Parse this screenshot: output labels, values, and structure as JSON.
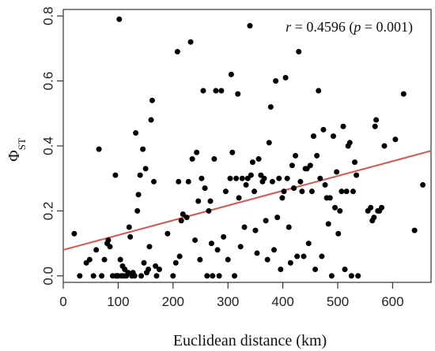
{
  "chart_data": {
    "type": "scatter",
    "title": "",
    "xlabel": "Euclidean distance (km)",
    "ylabel": "ΦST",
    "ylabel_main": "Φ",
    "ylabel_sub": "ST",
    "annotation": {
      "r_symbol": "r",
      "r_part": " = 0.4596 (",
      "p_symbol": "p",
      "p_part": " = 0.001)"
    },
    "xlim": [
      0,
      670
    ],
    "ylim": [
      -0.02,
      0.82
    ],
    "x_ticks": [
      0,
      100,
      200,
      300,
      400,
      500,
      600
    ],
    "x_tick_labels": [
      "0",
      "100",
      "200",
      "300",
      "400",
      "500",
      "600"
    ],
    "y_ticks": [
      0.0,
      0.2,
      0.4,
      0.6,
      0.8
    ],
    "y_tick_labels": [
      "0.0",
      "0.2",
      "0.4",
      "0.6",
      "0.8"
    ],
    "grid": false,
    "regression_line": {
      "x": [
        0,
        670
      ],
      "y": [
        0.08,
        0.385
      ],
      "color": "#d9534f"
    },
    "point_color": "#000000",
    "points": [
      [
        20,
        0.13
      ],
      [
        30,
        0.0
      ],
      [
        42,
        0.04
      ],
      [
        48,
        0.05
      ],
      [
        55,
        0.0
      ],
      [
        60,
        0.08
      ],
      [
        65,
        0.39
      ],
      [
        70,
        0.0
      ],
      [
        75,
        0.05
      ],
      [
        80,
        0.1
      ],
      [
        82,
        0.11
      ],
      [
        85,
        0.09
      ],
      [
        90,
        0.0
      ],
      [
        95,
        0.31
      ],
      [
        96,
        0.0
      ],
      [
        98,
        0.0
      ],
      [
        100,
        0.0
      ],
      [
        102,
        0.79
      ],
      [
        104,
        0.05
      ],
      [
        106,
        0.0
      ],
      [
        108,
        0.03
      ],
      [
        110,
        0.0
      ],
      [
        112,
        0.02
      ],
      [
        115,
        0.0
      ],
      [
        118,
        0.01
      ],
      [
        120,
        0.15
      ],
      [
        122,
        0.12
      ],
      [
        125,
        0.0
      ],
      [
        127,
        0.01
      ],
      [
        130,
        0.0
      ],
      [
        132,
        0.44
      ],
      [
        135,
        0.2
      ],
      [
        137,
        0.25
      ],
      [
        140,
        0.31
      ],
      [
        142,
        0.0
      ],
      [
        145,
        0.39
      ],
      [
        147,
        0.04
      ],
      [
        150,
        0.33
      ],
      [
        152,
        0.01
      ],
      [
        155,
        0.02
      ],
      [
        157,
        0.09
      ],
      [
        160,
        0.48
      ],
      [
        162,
        0.54
      ],
      [
        165,
        0.29
      ],
      [
        168,
        0.03
      ],
      [
        170,
        0.0
      ],
      [
        175,
        0.02
      ],
      [
        190,
        0.13
      ],
      [
        200,
        0.0
      ],
      [
        205,
        0.04
      ],
      [
        208,
        0.69
      ],
      [
        210,
        0.29
      ],
      [
        212,
        0.06
      ],
      [
        215,
        0.17
      ],
      [
        218,
        0.19
      ],
      [
        225,
        0.18
      ],
      [
        228,
        0.29
      ],
      [
        232,
        0.72
      ],
      [
        235,
        0.36
      ],
      [
        240,
        0.11
      ],
      [
        243,
        0.38
      ],
      [
        246,
        0.23
      ],
      [
        249,
        0.05
      ],
      [
        252,
        0.3
      ],
      [
        255,
        0.57
      ],
      [
        258,
        0.27
      ],
      [
        262,
        0.0
      ],
      [
        265,
        0.2
      ],
      [
        268,
        0.23
      ],
      [
        270,
        0.1
      ],
      [
        272,
        0.0
      ],
      [
        275,
        0.36
      ],
      [
        278,
        0.57
      ],
      [
        281,
        0.08
      ],
      [
        284,
        0.0
      ],
      [
        288,
        0.57
      ],
      [
        292,
        0.12
      ],
      [
        296,
        0.26
      ],
      [
        300,
        0.05
      ],
      [
        304,
        0.3
      ],
      [
        306,
        0.62
      ],
      [
        308,
        0.38
      ],
      [
        312,
        0.0
      ],
      [
        315,
        0.3
      ],
      [
        318,
        0.56
      ],
      [
        320,
        0.24
      ],
      [
        323,
        0.09
      ],
      [
        326,
        0.3
      ],
      [
        330,
        0.15
      ],
      [
        333,
        0.28
      ],
      [
        336,
        0.3
      ],
      [
        340,
        0.77
      ],
      [
        342,
        0.31
      ],
      [
        345,
        0.35
      ],
      [
        348,
        0.26
      ],
      [
        350,
        0.14
      ],
      [
        353,
        0.07
      ],
      [
        356,
        0.36
      ],
      [
        360,
        0.31
      ],
      [
        363,
        0.29
      ],
      [
        366,
        0.3
      ],
      [
        369,
        0.17
      ],
      [
        372,
        0.05
      ],
      [
        375,
        0.41
      ],
      [
        378,
        0.52
      ],
      [
        381,
        0.29
      ],
      [
        384,
        0.08
      ],
      [
        387,
        0.6
      ],
      [
        390,
        0.18
      ],
      [
        393,
        0.3
      ],
      [
        396,
        0.02
      ],
      [
        399,
        0.24
      ],
      [
        402,
        0.26
      ],
      [
        405,
        0.61
      ],
      [
        408,
        0.3
      ],
      [
        411,
        0.15
      ],
      [
        414,
        0.04
      ],
      [
        417,
        0.34
      ],
      [
        420,
        0.27
      ],
      [
        423,
        0.37
      ],
      [
        426,
        0.06
      ],
      [
        429,
        0.69
      ],
      [
        432,
        0.29
      ],
      [
        435,
        0.26
      ],
      [
        438,
        0.06
      ],
      [
        441,
        0.33
      ],
      [
        444,
        0.33
      ],
      [
        447,
        0.1
      ],
      [
        450,
        0.34
      ],
      [
        453,
        0.26
      ],
      [
        456,
        0.43
      ],
      [
        459,
        0.02
      ],
      [
        462,
        0.37
      ],
      [
        465,
        0.57
      ],
      [
        468,
        0.3
      ],
      [
        471,
        0.06
      ],
      [
        474,
        0.45
      ],
      [
        477,
        0.28
      ],
      [
        480,
        0.24
      ],
      [
        483,
        0.16
      ],
      [
        486,
        0.24
      ],
      [
        489,
        0.0
      ],
      [
        492,
        0.43
      ],
      [
        495,
        0.21
      ],
      [
        498,
        0.32
      ],
      [
        501,
        0.13
      ],
      [
        504,
        0.2
      ],
      [
        507,
        0.26
      ],
      [
        510,
        0.46
      ],
      [
        513,
        0.02
      ],
      [
        516,
        0.26
      ],
      [
        519,
        0.4
      ],
      [
        522,
        0.41
      ],
      [
        525,
        0.0
      ],
      [
        528,
        0.26
      ],
      [
        531,
        0.35
      ],
      [
        534,
        0.31
      ],
      [
        537,
        0.0
      ],
      [
        555,
        0.2
      ],
      [
        560,
        0.21
      ],
      [
        563,
        0.17
      ],
      [
        566,
        0.18
      ],
      [
        568,
        0.46
      ],
      [
        570,
        0.48
      ],
      [
        573,
        0.2
      ],
      [
        576,
        0.2
      ],
      [
        580,
        0.21
      ],
      [
        585,
        0.4
      ],
      [
        605,
        0.42
      ],
      [
        620,
        0.56
      ],
      [
        640,
        0.14
      ],
      [
        655,
        0.28
      ]
    ]
  }
}
